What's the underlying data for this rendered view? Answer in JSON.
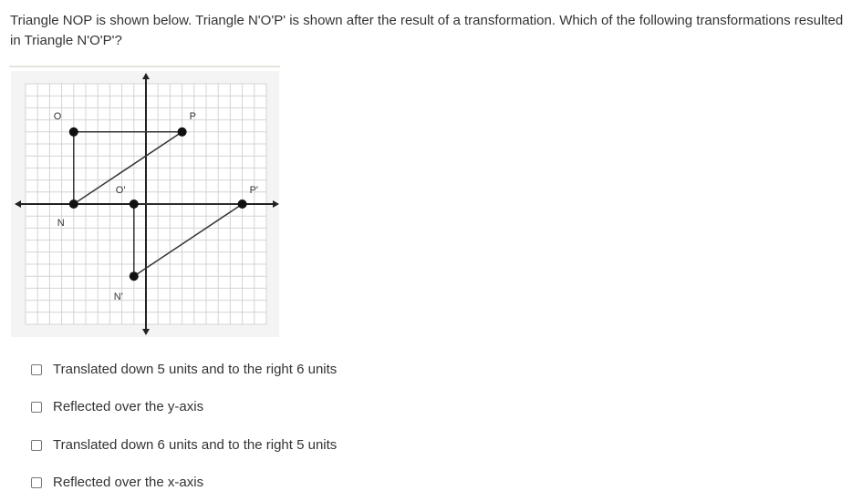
{
  "question": "Triangle NOP is shown below. Triangle N'O'P' is shown after the result of a transformation. Which of the following transformations resulted in Triangle N'O'P'?",
  "graph": {
    "range": [
      -10,
      10
    ],
    "original": {
      "N": [
        -6,
        0
      ],
      "O": [
        -6,
        6
      ],
      "P": [
        3,
        6
      ]
    },
    "image": {
      "N'": [
        -1,
        -6
      ],
      "O'": [
        -1,
        0
      ],
      "P'": [
        8,
        0
      ]
    },
    "labels": {
      "N": "N",
      "O": "O",
      "P": "P",
      "N'": "N'",
      "O'": "O'",
      "P'": "P'"
    }
  },
  "options": [
    {
      "label": "Translated down 5 units and to the right 6 units",
      "checked": false
    },
    {
      "label": "Reflected over the y-axis",
      "checked": false
    },
    {
      "label": "Translated down 6 units and to the right 5 units",
      "checked": false
    },
    {
      "label": "Reflected over the x-axis",
      "checked": false
    }
  ]
}
